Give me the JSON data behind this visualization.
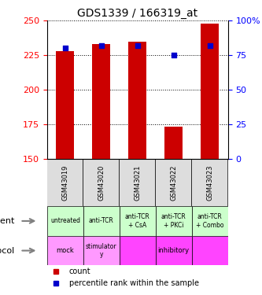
{
  "title": "GDS1339 / 166319_at",
  "samples": [
    "GSM43019",
    "GSM43020",
    "GSM43021",
    "GSM43022",
    "GSM43023"
  ],
  "counts": [
    228,
    233,
    235,
    173,
    248
  ],
  "percentile_ranks": [
    80,
    82,
    82,
    75,
    82
  ],
  "ylim_left": [
    150,
    250
  ],
  "yticks_left": [
    150,
    175,
    200,
    225,
    250
  ],
  "ylim_right": [
    0,
    100
  ],
  "yticks_right": [
    0,
    25,
    50,
    75,
    100
  ],
  "bar_color": "#cc0000",
  "dot_color": "#0000cc",
  "bar_width": 0.5,
  "agent_labels": [
    "untreated",
    "anti-TCR",
    "anti-TCR\n+ CsA",
    "anti-TCR\n+ PKCi",
    "anti-TCR\n+ Combo"
  ],
  "agent_color": "#ccffcc",
  "protocol_labels": [
    "mock",
    "stimulator\ny",
    "inhibitory",
    "inhibitory",
    "inhibitory"
  ],
  "protocol_mock_color": "#ff99ff",
  "protocol_stim_color": "#ff99ff",
  "protocol_inhib_color": "#ff44ff",
  "sample_bg_color": "#dddddd",
  "legend_count_color": "#cc0000",
  "legend_pct_color": "#0000cc"
}
